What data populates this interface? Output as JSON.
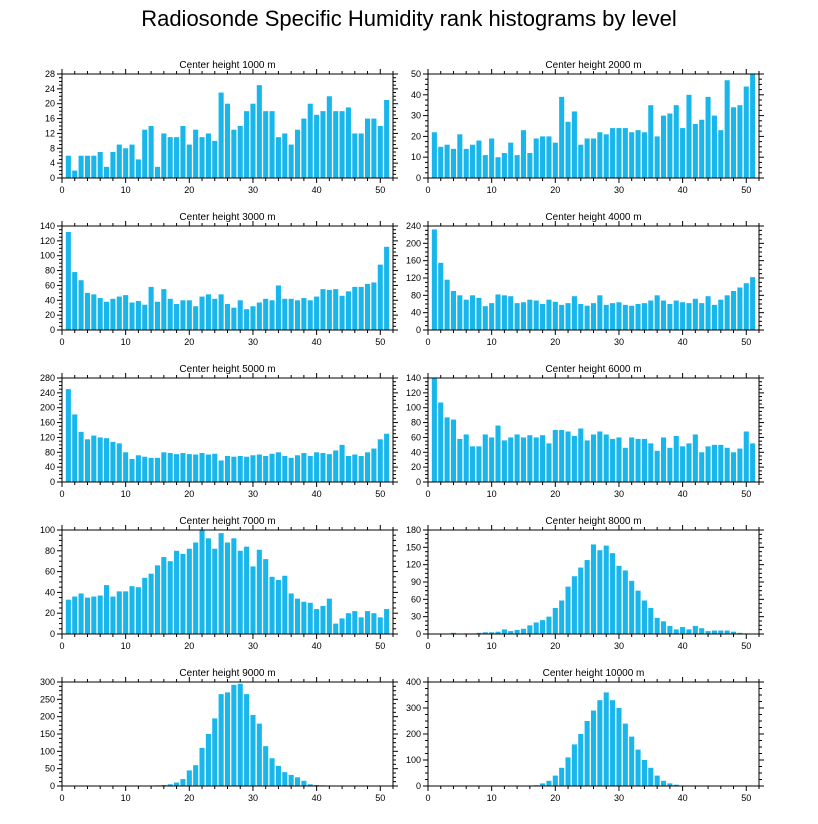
{
  "title": "Radiosonde Specific Humidity rank histograms by level",
  "colors": {
    "bar": "#19b6ec",
    "axis": "#000000",
    "background": "#ffffff"
  },
  "chart_data": [
    {
      "type": "bar",
      "title": "Center height 1000 m",
      "x": [
        1,
        2,
        3,
        4,
        5,
        6,
        7,
        8,
        9,
        10,
        11,
        12,
        13,
        14,
        15,
        16,
        17,
        18,
        19,
        20,
        21,
        22,
        23,
        24,
        25,
        26,
        27,
        28,
        29,
        30,
        31,
        32,
        33,
        34,
        35,
        36,
        37,
        38,
        39,
        40,
        41,
        42,
        43,
        44,
        45,
        46,
        47,
        48,
        49,
        50,
        51
      ],
      "values": [
        6,
        2,
        6,
        6,
        6,
        7,
        3,
        7,
        9,
        8,
        9,
        5,
        13,
        14,
        3,
        12,
        11,
        11,
        14,
        9,
        13,
        11,
        12,
        10,
        23,
        20,
        13,
        14,
        18,
        20,
        25,
        18,
        18,
        11,
        12,
        9,
        13,
        16,
        20,
        17,
        18,
        22,
        18,
        18,
        19,
        12,
        12,
        16,
        16,
        14,
        21
      ],
      "xlim": [
        0,
        52
      ],
      "ylim": [
        0,
        28
      ],
      "xticks": [
        0,
        10,
        20,
        30,
        40,
        50
      ],
      "yticks": [
        0,
        4,
        8,
        12,
        16,
        20,
        24,
        28
      ],
      "xlabel": "",
      "ylabel": ""
    },
    {
      "type": "bar",
      "title": "Center height 2000 m",
      "x": [
        1,
        2,
        3,
        4,
        5,
        6,
        7,
        8,
        9,
        10,
        11,
        12,
        13,
        14,
        15,
        16,
        17,
        18,
        19,
        20,
        21,
        22,
        23,
        24,
        25,
        26,
        27,
        28,
        29,
        30,
        31,
        32,
        33,
        34,
        35,
        36,
        37,
        38,
        39,
        40,
        41,
        42,
        43,
        44,
        45,
        46,
        47,
        48,
        49,
        50,
        51
      ],
      "values": [
        22,
        15,
        16,
        14,
        21,
        14,
        16,
        18,
        11,
        19,
        10,
        12,
        17,
        11,
        23,
        12,
        19,
        20,
        20,
        17,
        39,
        27,
        32,
        16,
        19,
        19,
        22,
        21,
        24,
        24,
        24,
        22,
        23,
        22,
        35,
        20,
        30,
        31,
        35,
        24,
        40,
        26,
        28,
        39,
        30,
        23,
        47,
        34,
        35,
        44,
        50
      ],
      "xlim": [
        0,
        52
      ],
      "ylim": [
        0,
        50
      ],
      "xticks": [
        0,
        10,
        20,
        30,
        40,
        50
      ],
      "yticks": [
        0,
        10,
        20,
        30,
        40,
        50
      ],
      "xlabel": "",
      "ylabel": ""
    },
    {
      "type": "bar",
      "title": "Center height 3000 m",
      "x": [
        1,
        2,
        3,
        4,
        5,
        6,
        7,
        8,
        9,
        10,
        11,
        12,
        13,
        14,
        15,
        16,
        17,
        18,
        19,
        20,
        21,
        22,
        23,
        24,
        25,
        26,
        27,
        28,
        29,
        30,
        31,
        32,
        33,
        34,
        35,
        36,
        37,
        38,
        39,
        40,
        41,
        42,
        43,
        44,
        45,
        46,
        47,
        48,
        49,
        50,
        51
      ],
      "values": [
        132,
        78,
        67,
        50,
        48,
        43,
        38,
        42,
        45,
        47,
        37,
        39,
        34,
        58,
        38,
        55,
        42,
        35,
        40,
        40,
        32,
        45,
        48,
        42,
        48,
        35,
        30,
        40,
        28,
        32,
        37,
        42,
        40,
        60,
        42,
        42,
        40,
        43,
        40,
        45,
        55,
        54,
        55,
        46,
        52,
        58,
        58,
        62,
        64,
        88,
        112
      ],
      "xlim": [
        0,
        52
      ],
      "ylim": [
        0,
        140
      ],
      "xticks": [
        0,
        10,
        20,
        30,
        40,
        50
      ],
      "yticks": [
        0,
        20,
        40,
        60,
        80,
        100,
        120,
        140
      ],
      "xlabel": "",
      "ylabel": ""
    },
    {
      "type": "bar",
      "title": "Center height 4000 m",
      "x": [
        1,
        2,
        3,
        4,
        5,
        6,
        7,
        8,
        9,
        10,
        11,
        12,
        13,
        14,
        15,
        16,
        17,
        18,
        19,
        20,
        21,
        22,
        23,
        24,
        25,
        26,
        27,
        28,
        29,
        30,
        31,
        32,
        33,
        34,
        35,
        36,
        37,
        38,
        39,
        40,
        41,
        42,
        43,
        44,
        45,
        46,
        47,
        48,
        49,
        50,
        51
      ],
      "values": [
        232,
        155,
        116,
        90,
        80,
        70,
        80,
        74,
        55,
        62,
        82,
        80,
        78,
        62,
        64,
        70,
        68,
        60,
        70,
        65,
        58,
        62,
        78,
        60,
        56,
        62,
        80,
        58,
        62,
        64,
        58,
        56,
        60,
        62,
        68,
        80,
        68,
        60,
        68,
        64,
        62,
        72,
        62,
        78,
        58,
        70,
        80,
        90,
        98,
        108,
        122
      ],
      "xlim": [
        0,
        52
      ],
      "ylim": [
        0,
        240
      ],
      "xticks": [
        0,
        10,
        20,
        30,
        40,
        50
      ],
      "yticks": [
        0,
        40,
        80,
        120,
        160,
        200,
        240
      ],
      "xlabel": "",
      "ylabel": ""
    },
    {
      "type": "bar",
      "title": "Center height 5000 m",
      "x": [
        1,
        2,
        3,
        4,
        5,
        6,
        7,
        8,
        9,
        10,
        11,
        12,
        13,
        14,
        15,
        16,
        17,
        18,
        19,
        20,
        21,
        22,
        23,
        24,
        25,
        26,
        27,
        28,
        29,
        30,
        31,
        32,
        33,
        34,
        35,
        36,
        37,
        38,
        39,
        40,
        41,
        42,
        43,
        44,
        45,
        46,
        47,
        48,
        49,
        50,
        51
      ],
      "values": [
        250,
        182,
        135,
        115,
        125,
        120,
        118,
        108,
        104,
        80,
        62,
        72,
        68,
        65,
        65,
        80,
        78,
        75,
        78,
        75,
        74,
        78,
        74,
        76,
        58,
        70,
        68,
        70,
        68,
        72,
        74,
        70,
        76,
        80,
        70,
        65,
        72,
        78,
        70,
        80,
        78,
        75,
        85,
        100,
        70,
        74,
        70,
        80,
        90,
        115,
        130
      ],
      "xlim": [
        0,
        52
      ],
      "ylim": [
        0,
        280
      ],
      "xticks": [
        0,
        10,
        20,
        30,
        40,
        50
      ],
      "yticks": [
        0,
        40,
        80,
        120,
        160,
        200,
        240,
        280
      ],
      "xlabel": "",
      "ylabel": ""
    },
    {
      "type": "bar",
      "title": "Center height 6000 m",
      "x": [
        1,
        2,
        3,
        4,
        5,
        6,
        7,
        8,
        9,
        10,
        11,
        12,
        13,
        14,
        15,
        16,
        17,
        18,
        19,
        20,
        21,
        22,
        23,
        24,
        25,
        26,
        27,
        28,
        29,
        30,
        31,
        32,
        33,
        34,
        35,
        36,
        37,
        38,
        39,
        40,
        41,
        42,
        43,
        44,
        45,
        46,
        47,
        48,
        49,
        50,
        51
      ],
      "values": [
        140,
        107,
        87,
        84,
        58,
        64,
        48,
        48,
        64,
        60,
        76,
        56,
        60,
        64,
        60,
        63,
        60,
        63,
        52,
        70,
        70,
        68,
        62,
        72,
        56,
        64,
        68,
        64,
        58,
        60,
        46,
        60,
        58,
        58,
        52,
        42,
        60,
        46,
        62,
        48,
        52,
        64,
        40,
        48,
        50,
        50,
        46,
        40,
        45,
        68,
        52
      ],
      "xlim": [
        0,
        52
      ],
      "ylim": [
        0,
        140
      ],
      "xticks": [
        0,
        10,
        20,
        30,
        40,
        50
      ],
      "yticks": [
        0,
        20,
        40,
        60,
        80,
        100,
        120,
        140
      ],
      "xlabel": "",
      "ylabel": ""
    },
    {
      "type": "bar",
      "title": "Center height 7000 m",
      "x": [
        1,
        2,
        3,
        4,
        5,
        6,
        7,
        8,
        9,
        10,
        11,
        12,
        13,
        14,
        15,
        16,
        17,
        18,
        19,
        20,
        21,
        22,
        23,
        24,
        25,
        26,
        27,
        28,
        29,
        30,
        31,
        32,
        33,
        34,
        35,
        36,
        37,
        38,
        39,
        40,
        41,
        42,
        43,
        44,
        45,
        46,
        47,
        48,
        49,
        50,
        51
      ],
      "values": [
        33,
        36,
        39,
        35,
        36,
        37,
        47,
        36,
        41,
        41,
        46,
        45,
        54,
        58,
        66,
        74,
        70,
        80,
        77,
        82,
        88,
        100,
        92,
        82,
        97,
        88,
        92,
        80,
        84,
        65,
        81,
        72,
        55,
        52,
        56,
        39,
        34,
        31,
        30,
        24,
        27,
        34,
        10,
        15,
        20,
        22,
        16,
        22,
        20,
        16,
        24
      ],
      "xlim": [
        0,
        52
      ],
      "ylim": [
        0,
        100
      ],
      "xticks": [
        0,
        10,
        20,
        30,
        40,
        50
      ],
      "yticks": [
        0,
        20,
        40,
        60,
        80,
        100
      ],
      "xlabel": "",
      "ylabel": ""
    },
    {
      "type": "bar",
      "title": "Center height 8000 m",
      "x": [
        1,
        2,
        3,
        4,
        5,
        6,
        7,
        8,
        9,
        10,
        11,
        12,
        13,
        14,
        15,
        16,
        17,
        18,
        19,
        20,
        21,
        22,
        23,
        24,
        25,
        26,
        27,
        28,
        29,
        30,
        31,
        32,
        33,
        34,
        35,
        36,
        37,
        38,
        39,
        40,
        41,
        42,
        43,
        44,
        45,
        46,
        47,
        48,
        49,
        50,
        51
      ],
      "values": [
        0,
        0,
        0,
        2,
        0,
        1,
        1,
        2,
        3,
        3,
        4,
        8,
        5,
        7,
        9,
        15,
        20,
        24,
        30,
        45,
        58,
        82,
        100,
        115,
        128,
        155,
        145,
        153,
        140,
        118,
        110,
        92,
        75,
        58,
        45,
        28,
        22,
        14,
        8,
        12,
        8,
        14,
        10,
        5,
        6,
        6,
        6,
        4,
        2,
        1,
        0
      ],
      "xlim": [
        0,
        52
      ],
      "ylim": [
        0,
        180
      ],
      "xticks": [
        0,
        10,
        20,
        30,
        40,
        50
      ],
      "yticks": [
        0,
        30,
        60,
        90,
        120,
        150,
        180
      ],
      "xlabel": "",
      "ylabel": ""
    },
    {
      "type": "bar",
      "title": "Center height 9000 m",
      "x": [
        1,
        2,
        3,
        4,
        5,
        6,
        7,
        8,
        9,
        10,
        11,
        12,
        13,
        14,
        15,
        16,
        17,
        18,
        19,
        20,
        21,
        22,
        23,
        24,
        25,
        26,
        27,
        28,
        29,
        30,
        31,
        32,
        33,
        34,
        35,
        36,
        37,
        38,
        39,
        40,
        41,
        42,
        43,
        44,
        45,
        46,
        47,
        48,
        49,
        50,
        51
      ],
      "values": [
        0,
        0,
        0,
        0,
        0,
        0,
        0,
        0,
        0,
        0,
        0,
        0,
        0,
        0,
        2,
        3,
        5,
        10,
        20,
        45,
        60,
        110,
        150,
        195,
        265,
        270,
        292,
        295,
        265,
        205,
        180,
        115,
        80,
        58,
        40,
        32,
        25,
        15,
        5,
        3,
        2,
        1,
        1,
        1,
        0,
        0,
        0,
        0,
        0,
        0,
        0
      ],
      "xlim": [
        0,
        52
      ],
      "ylim": [
        0,
        300
      ],
      "xticks": [
        0,
        10,
        20,
        30,
        40,
        50
      ],
      "yticks": [
        0,
        50,
        100,
        150,
        200,
        250,
        300
      ],
      "xlabel": "",
      "ylabel": ""
    },
    {
      "type": "bar",
      "title": "Center height 10000 m",
      "x": [
        1,
        2,
        3,
        4,
        5,
        6,
        7,
        8,
        9,
        10,
        11,
        12,
        13,
        14,
        15,
        16,
        17,
        18,
        19,
        20,
        21,
        22,
        23,
        24,
        25,
        26,
        27,
        28,
        29,
        30,
        31,
        32,
        33,
        34,
        35,
        36,
        37,
        38,
        39,
        40,
        41,
        42,
        43,
        44,
        45,
        46,
        47,
        48,
        49,
        50,
        51
      ],
      "values": [
        0,
        0,
        0,
        0,
        0,
        0,
        0,
        0,
        0,
        0,
        0,
        0,
        0,
        0,
        0,
        1,
        3,
        10,
        20,
        40,
        70,
        110,
        160,
        200,
        250,
        290,
        330,
        360,
        330,
        300,
        240,
        190,
        140,
        100,
        70,
        40,
        20,
        10,
        5,
        2,
        1,
        0,
        0,
        0,
        0,
        0,
        0,
        0,
        0,
        0,
        0
      ],
      "xlim": [
        0,
        52
      ],
      "ylim": [
        0,
        400
      ],
      "xticks": [
        0,
        10,
        20,
        30,
        40,
        50
      ],
      "yticks": [
        0,
        100,
        200,
        300,
        400
      ],
      "xlabel": "",
      "ylabel": ""
    }
  ]
}
